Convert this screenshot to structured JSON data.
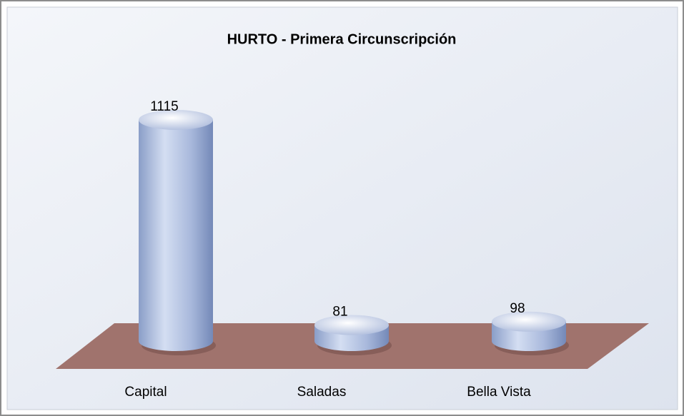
{
  "chart_data": {
    "type": "bar",
    "title": "HURTO - Primera Circunscripción",
    "categories": [
      "Capital",
      "Saladas",
      "Bella Vista"
    ],
    "values": [
      1115,
      81,
      98
    ]
  }
}
